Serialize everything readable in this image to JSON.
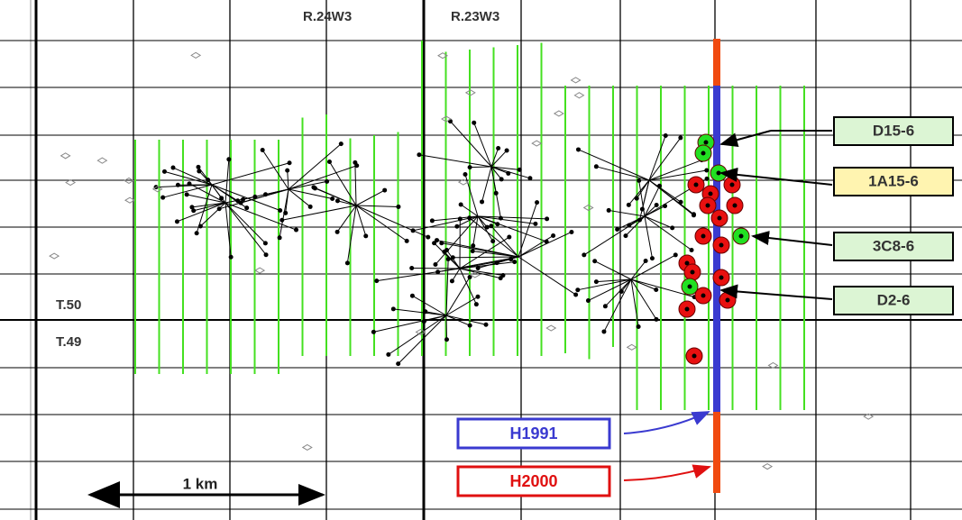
{
  "range_labels": [
    "R.24W3",
    "R.23W3"
  ],
  "township_labels": [
    "T.50",
    "T.49"
  ],
  "well_labels": [
    "D15-6",
    "1A15-6",
    "3C8-6",
    "D2-6"
  ],
  "survey_labels": [
    "H1991",
    "H2000"
  ],
  "scale_bar": "1 km"
}
